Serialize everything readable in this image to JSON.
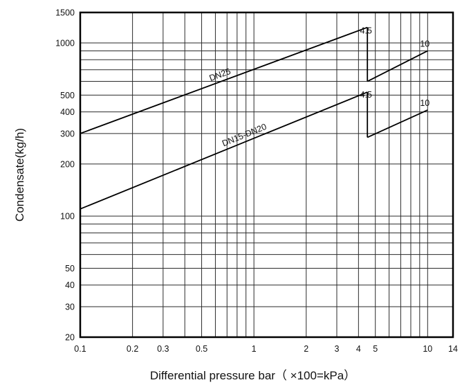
{
  "chart_data": {
    "type": "line",
    "xlabel": "Differential pressure bar（ ×100=kPa）",
    "ylabel": "Condensate(kg/h)",
    "x_scale": "log",
    "y_scale": "log",
    "xlim": [
      0.1,
      14
    ],
    "ylim": [
      20,
      1500
    ],
    "grid": true,
    "x_ticks": [
      {
        "value": 0.1,
        "label": "0.1"
      },
      {
        "value": 0.2,
        "label": "0.2"
      },
      {
        "value": 0.3,
        "label": "0.3"
      },
      {
        "value": 0.5,
        "label": "0.5"
      },
      {
        "value": 1,
        "label": "1"
      },
      {
        "value": 2,
        "label": "2"
      },
      {
        "value": 3,
        "label": "3"
      },
      {
        "value": 4,
        "label": "4"
      },
      {
        "value": 5,
        "label": "5"
      },
      {
        "value": 10,
        "label": "10"
      },
      {
        "value": 14,
        "label": "14"
      }
    ],
    "y_ticks": [
      {
        "value": 20,
        "label": "20"
      },
      {
        "value": 30,
        "label": "30"
      },
      {
        "value": 40,
        "label": "40"
      },
      {
        "value": 50,
        "label": "50"
      },
      {
        "value": 100,
        "label": "100"
      },
      {
        "value": 200,
        "label": "200"
      },
      {
        "value": 300,
        "label": "300"
      },
      {
        "value": 400,
        "label": "400"
      },
      {
        "value": 500,
        "label": "500"
      },
      {
        "value": 1000,
        "label": "1000"
      },
      {
        "value": 1500,
        "label": "1500"
      }
    ],
    "series": [
      {
        "name": "DN25",
        "segments": [
          {
            "x": [
              0.1,
              4.5
            ],
            "y": [
              300,
              1230
            ]
          },
          {
            "x": [
              4.5,
              4.5
            ],
            "y": [
              1230,
              600
            ]
          },
          {
            "x": [
              4.5,
              10
            ],
            "y": [
              600,
              900
            ]
          }
        ]
      },
      {
        "name": "DN15-DN20",
        "segments": [
          {
            "x": [
              0.1,
              4.5
            ],
            "y": [
              110,
              520
            ]
          },
          {
            "x": [
              4.5,
              4.5
            ],
            "y": [
              520,
              285
            ]
          },
          {
            "x": [
              4.5,
              10
            ],
            "y": [
              285,
              410
            ]
          }
        ]
      }
    ],
    "annotations": [
      {
        "text": "4.5",
        "series": "DN25",
        "x": 4.5,
        "y": 1230
      },
      {
        "text": "10",
        "series": "DN25",
        "x": 10,
        "y": 900
      },
      {
        "text": "4.5",
        "series": "DN15-DN20",
        "x": 4.5,
        "y": 520
      },
      {
        "text": "10",
        "series": "DN15-DN20",
        "x": 10,
        "y": 410
      }
    ],
    "colors": {
      "grid": "#2a2a2a",
      "frame": "#000000",
      "line": "#000000",
      "text": "#111111"
    }
  }
}
